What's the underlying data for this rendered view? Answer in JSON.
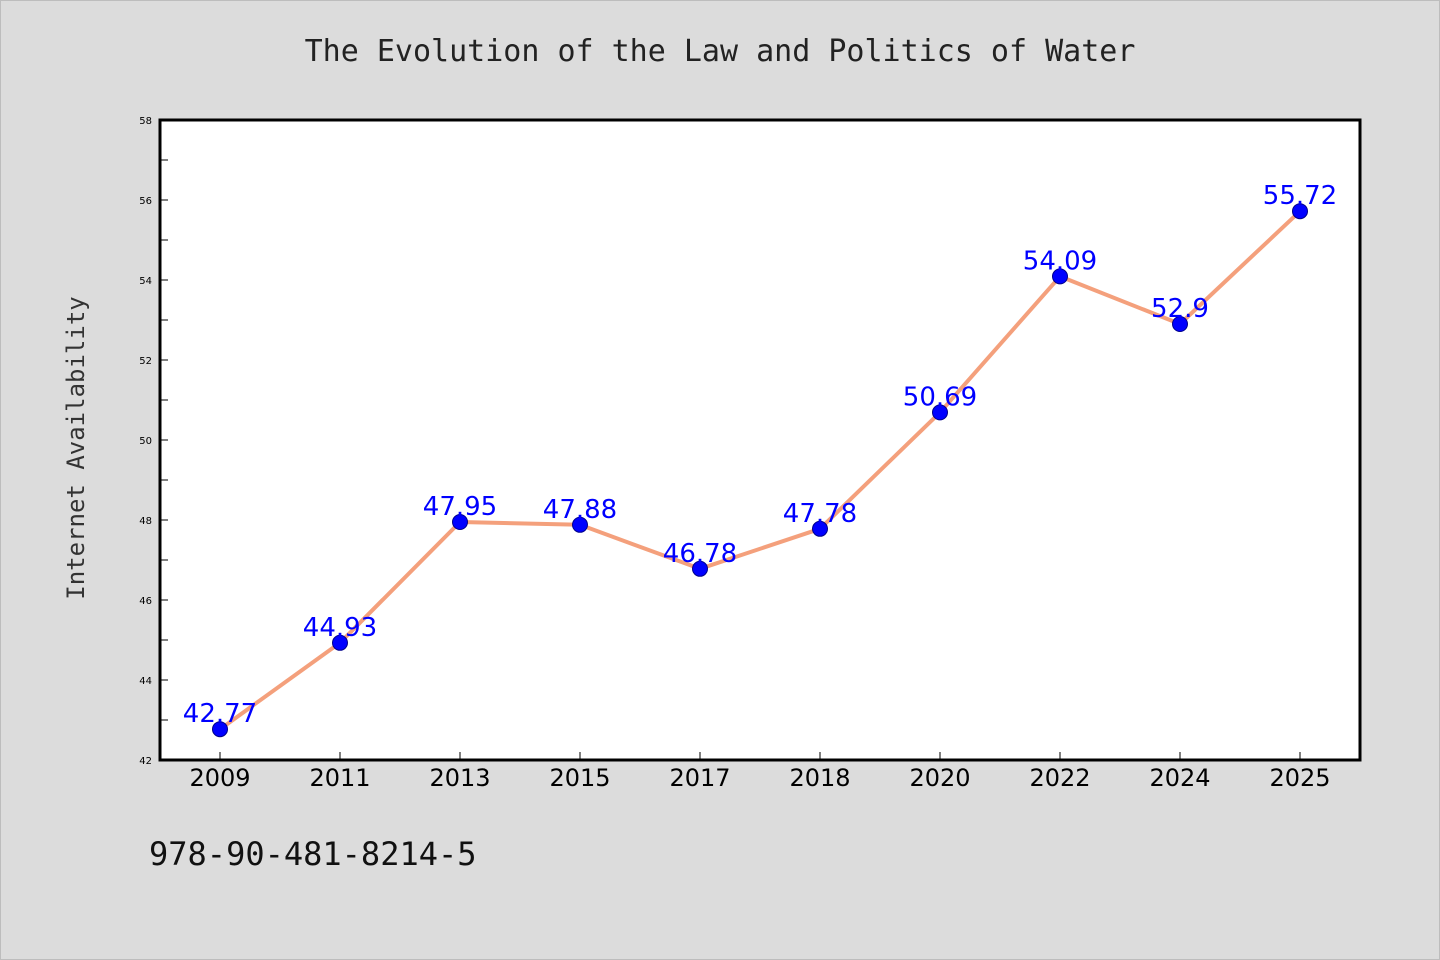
{
  "chart_data": {
    "type": "line",
    "title": "The Evolution of the Law and Politics of Water",
    "xlabel": "",
    "ylabel": "Internet Availability",
    "categories": [
      "2009",
      "2011",
      "2013",
      "2015",
      "2017",
      "2018",
      "2020",
      "2022",
      "2024",
      "2025"
    ],
    "series": [
      {
        "values": [
          42.77,
          44.93,
          47.95,
          47.88,
          46.78,
          47.78,
          50.69,
          54.09,
          52.9,
          55.72
        ]
      }
    ],
    "data_labels": [
      "42.77",
      "44.93",
      "47.95",
      "47.88",
      "46.78",
      "47.78",
      "50.69",
      "54.09",
      "52.9",
      "55.72"
    ],
    "ylim": [
      42,
      58
    ],
    "yticks": [
      42,
      44,
      46,
      48,
      50,
      52,
      54,
      56,
      58
    ],
    "grid": false,
    "line_color": "#f4a07c",
    "marker_color": "#0000ff",
    "label_color": "#0000ff"
  },
  "footer": {
    "isbn": "978-90-481-8214-5"
  }
}
